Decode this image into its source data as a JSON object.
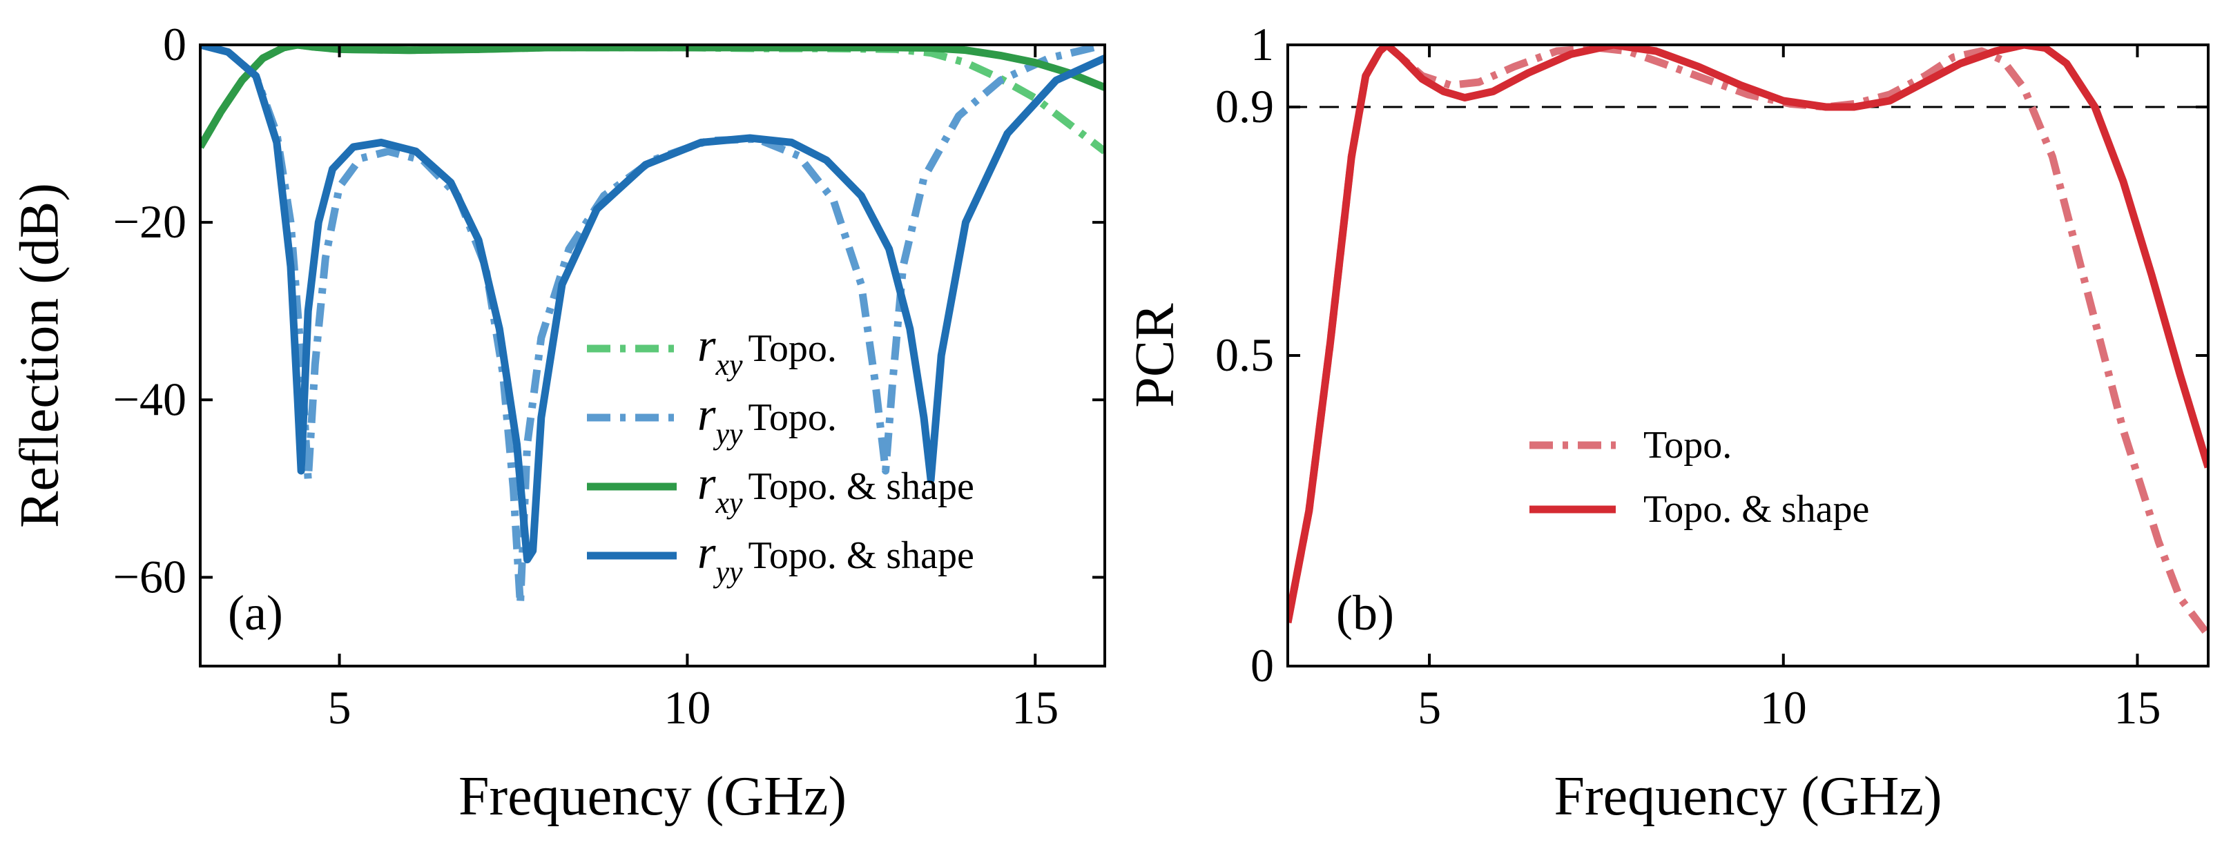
{
  "chart_data": [
    {
      "type": "line",
      "panel_label": "(a)",
      "xlabel": "Frequency (GHz)",
      "ylabel": "Reflection (dB)",
      "xlim": [
        3,
        16
      ],
      "ylim": [
        -70,
        0
      ],
      "xticks": [
        5,
        10,
        15
      ],
      "yticks": [
        0,
        -20,
        -40,
        -60
      ],
      "xtick_labels": [
        "5",
        "10",
        "15"
      ],
      "ytick_labels": [
        "0",
        "−20",
        "−40",
        "−60"
      ],
      "legend": {
        "placement": "center-right",
        "entries": [
          {
            "math": "r",
            "sub": "xy",
            "text": "Topo."
          },
          {
            "math": "r",
            "sub": "yy",
            "text": "Topo."
          },
          {
            "math": "r",
            "sub": "xy",
            "text": "Topo. & shape"
          },
          {
            "math": "r",
            "sub": "yy",
            "text": "Topo. & shape"
          }
        ]
      },
      "series": [
        {
          "name": "r_xy Topo.",
          "style": "dashdot",
          "color": "#5cc878",
          "x": [
            3,
            3.3,
            3.6,
            3.9,
            4.2,
            4.4,
            4.6,
            5,
            6,
            7,
            8,
            9,
            10,
            11,
            12,
            13,
            13.5,
            14,
            14.5,
            15,
            15.5,
            16
          ],
          "y": [
            -11.5,
            -7.5,
            -4.0,
            -1.5,
            -0.3,
            0,
            -0.2,
            -0.5,
            -0.6,
            -0.5,
            -0.3,
            -0.3,
            -0.3,
            -0.4,
            -0.4,
            -0.5,
            -0.9,
            -2.0,
            -3.8,
            -6.0,
            -9.0,
            -12.0
          ]
        },
        {
          "name": "r_yy Topo.",
          "style": "dashdot",
          "color": "#5b9bd0",
          "x": [
            3,
            3.4,
            3.8,
            4.1,
            4.3,
            4.45,
            4.55,
            4.65,
            4.8,
            5.0,
            5.3,
            5.7,
            6.2,
            6.7,
            7.1,
            7.35,
            7.5,
            7.6,
            7.7,
            7.9,
            8.3,
            8.8,
            9.5,
            10.3,
            11.0,
            11.6,
            12.1,
            12.5,
            12.7,
            12.85,
            12.95,
            13.1,
            13.4,
            13.9,
            14.5,
            15.2,
            16
          ],
          "y": [
            0,
            -0.8,
            -3.5,
            -10,
            -20,
            -35,
            -49,
            -36,
            -24,
            -16,
            -12.8,
            -12.0,
            -13.0,
            -17.0,
            -25.0,
            -37.0,
            -50.0,
            -63.0,
            -45.0,
            -33.0,
            -23.0,
            -17.0,
            -13.0,
            -10.8,
            -10.6,
            -12.5,
            -17.5,
            -27.0,
            -38.0,
            -48.0,
            -38.0,
            -25.0,
            -15.0,
            -8.0,
            -4.0,
            -1.5,
            0
          ]
        },
        {
          "name": "r_xy Topo. & shape",
          "style": "solid",
          "color": "#2e9a48",
          "x": [
            3,
            3.3,
            3.6,
            3.9,
            4.2,
            4.4,
            4.6,
            5,
            6,
            7,
            8,
            9,
            10,
            11,
            12,
            13,
            13.5,
            14,
            14.5,
            15,
            15.5,
            16
          ],
          "y": [
            -11.5,
            -7.5,
            -4.0,
            -1.5,
            -0.3,
            0,
            -0.2,
            -0.5,
            -0.6,
            -0.5,
            -0.3,
            -0.3,
            -0.3,
            -0.3,
            -0.3,
            -0.3,
            -0.35,
            -0.6,
            -1.2,
            -2.0,
            -3.2,
            -4.8
          ]
        },
        {
          "name": "r_yy Topo. & shape",
          "style": "solid",
          "color": "#1f6fb4",
          "x": [
            3,
            3.4,
            3.8,
            4.1,
            4.3,
            4.4,
            4.45,
            4.55,
            4.7,
            4.9,
            5.2,
            5.6,
            6.1,
            6.6,
            7.0,
            7.3,
            7.55,
            7.7,
            7.78,
            7.9,
            8.2,
            8.7,
            9.4,
            10.2,
            10.9,
            11.5,
            12.0,
            12.5,
            12.9,
            13.2,
            13.4,
            13.5,
            13.65,
            14.0,
            14.6,
            15.3,
            16
          ],
          "y": [
            0,
            -0.8,
            -3.5,
            -11,
            -25,
            -40,
            -48,
            -30,
            -20,
            -14,
            -11.5,
            -11.0,
            -12.0,
            -15.5,
            -22.0,
            -32.0,
            -45.0,
            -58.0,
            -57.0,
            -42.0,
            -27.0,
            -18.5,
            -13.5,
            -11.0,
            -10.5,
            -11.0,
            -13.0,
            -17.0,
            -23.0,
            -32.0,
            -42.0,
            -49.0,
            -35.0,
            -20.0,
            -10.0,
            -4.0,
            -1.5
          ]
        }
      ]
    },
    {
      "type": "line",
      "panel_label": "(b)",
      "xlabel": "Frequency (GHz)",
      "ylabel": "PCR",
      "xlim": [
        3,
        16
      ],
      "ylim": [
        0,
        1
      ],
      "xticks": [
        5,
        10,
        15
      ],
      "yticks": [
        0,
        0.5,
        0.9,
        1
      ],
      "xtick_labels": [
        "5",
        "10",
        "15"
      ],
      "ytick_labels": [
        "0",
        "0.5",
        "0.9",
        "1"
      ],
      "reference_line": {
        "y": 0.9,
        "style": "dashed",
        "color": "#000000"
      },
      "legend": {
        "placement": "center-left",
        "entries": [
          {
            "text": "Topo."
          },
          {
            "text": "Topo. & shape"
          }
        ]
      },
      "series": [
        {
          "name": "Topo.",
          "style": "dashdot",
          "color": "#dc7078",
          "x": [
            3,
            3.3,
            3.6,
            3.9,
            4.1,
            4.3,
            4.4,
            4.6,
            4.9,
            5.3,
            5.7,
            6.2,
            6.8,
            7.4,
            7.8,
            8.3,
            8.9,
            9.5,
            10.1,
            10.6,
            11.0,
            11.5,
            12.0,
            12.4,
            12.8,
            13.1,
            13.4,
            13.8,
            14.3,
            14.8,
            15.3,
            15.6,
            16
          ],
          "y": [
            0.07,
            0.25,
            0.52,
            0.82,
            0.95,
            0.99,
            1.0,
            0.98,
            0.95,
            0.935,
            0.94,
            0.965,
            0.99,
            0.995,
            0.99,
            0.97,
            0.945,
            0.92,
            0.905,
            0.9,
            0.905,
            0.92,
            0.95,
            0.98,
            0.99,
            0.975,
            0.93,
            0.82,
            0.6,
            0.38,
            0.2,
            0.11,
            0.05
          ]
        },
        {
          "name": "Topo. & shape",
          "style": "solid",
          "color": "#d42a32",
          "x": [
            3,
            3.3,
            3.6,
            3.9,
            4.1,
            4.3,
            4.4,
            4.6,
            4.9,
            5.2,
            5.5,
            5.9,
            6.4,
            7.0,
            7.6,
            8.2,
            8.8,
            9.4,
            10.0,
            10.6,
            11.0,
            11.5,
            12.0,
            12.5,
            13.0,
            13.4,
            13.7,
            14.0,
            14.4,
            14.8,
            15.2,
            15.6,
            16
          ],
          "y": [
            0.07,
            0.25,
            0.52,
            0.82,
            0.95,
            0.99,
            1.0,
            0.98,
            0.945,
            0.925,
            0.915,
            0.925,
            0.955,
            0.985,
            1.0,
            0.99,
            0.965,
            0.935,
            0.91,
            0.9,
            0.9,
            0.91,
            0.94,
            0.97,
            0.99,
            1.0,
            0.995,
            0.97,
            0.9,
            0.78,
            0.63,
            0.47,
            0.32
          ]
        }
      ]
    }
  ]
}
